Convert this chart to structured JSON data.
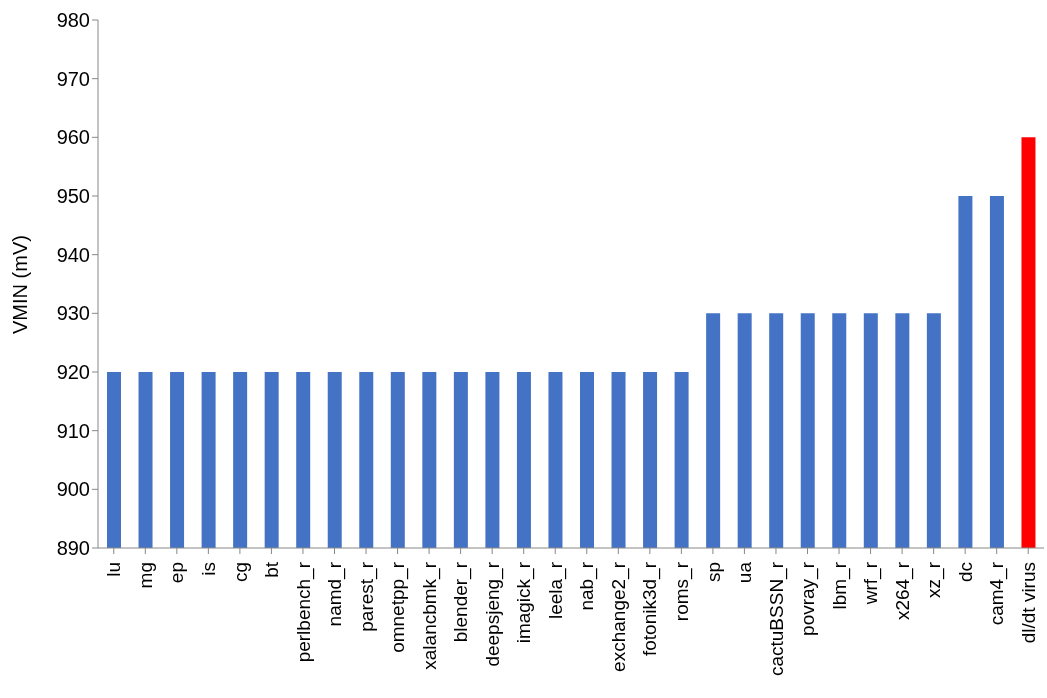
{
  "chart_data": {
    "type": "bar",
    "ylabel": "VMIN (mV)",
    "categories": [
      "lu",
      "mg",
      "ep",
      "is",
      "cg",
      "bt",
      "perlbench_r",
      "namd_r",
      "parest_r",
      "omnetpp_r",
      "xalancbmk_r",
      "blender_r",
      "deepsjeng_r",
      "imagick_r",
      "leela_r",
      "nab_r",
      "exchange2_r",
      "fotonik3d_r",
      "roms_r",
      "sp",
      "ua",
      "cactuBSSN_r",
      "povray_r",
      "lbm_r",
      "wrf_r",
      "x264_r",
      "xz_r",
      "dc",
      "cam4_r",
      "dl/dt virus"
    ],
    "values": [
      920,
      920,
      920,
      920,
      920,
      920,
      920,
      920,
      920,
      920,
      920,
      920,
      920,
      920,
      920,
      920,
      920,
      920,
      920,
      930,
      930,
      930,
      930,
      930,
      930,
      930,
      930,
      950,
      950,
      960
    ],
    "colors": [
      "#4472c4",
      "#4472c4",
      "#4472c4",
      "#4472c4",
      "#4472c4",
      "#4472c4",
      "#4472c4",
      "#4472c4",
      "#4472c4",
      "#4472c4",
      "#4472c4",
      "#4472c4",
      "#4472c4",
      "#4472c4",
      "#4472c4",
      "#4472c4",
      "#4472c4",
      "#4472c4",
      "#4472c4",
      "#4472c4",
      "#4472c4",
      "#4472c4",
      "#4472c4",
      "#4472c4",
      "#4472c4",
      "#4472c4",
      "#4472c4",
      "#4472c4",
      "#4472c4",
      "#ff0000"
    ],
    "ylim": [
      890,
      980
    ],
    "yticks": [
      890,
      900,
      910,
      920,
      930,
      940,
      950,
      960,
      970,
      980
    ],
    "grid": false,
    "legend": false
  }
}
